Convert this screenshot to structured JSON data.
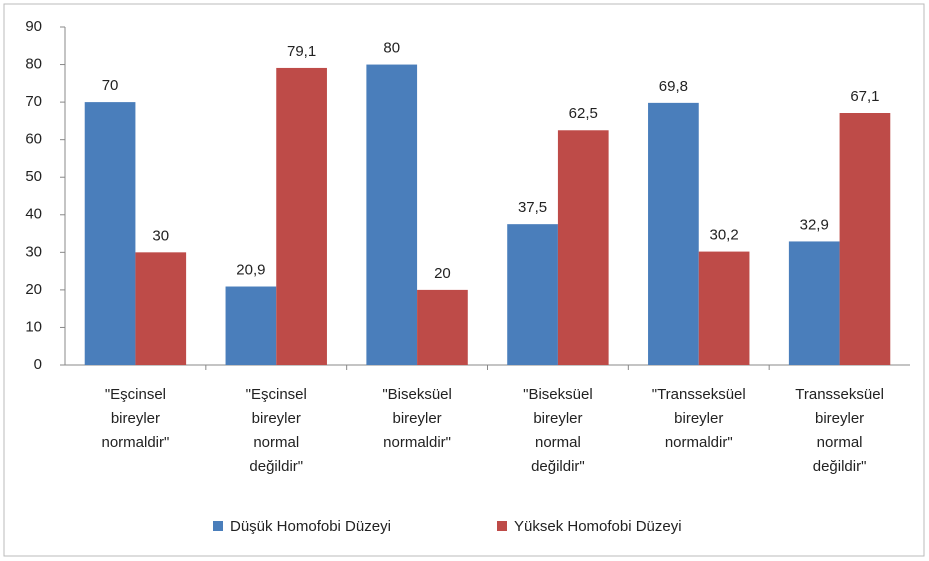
{
  "chart_data": {
    "type": "bar",
    "categories": [
      [
        "\"Eşcinsel",
        "bireyler",
        "normaldir\""
      ],
      [
        "\"Eşcinsel",
        "bireyler",
        "normal",
        "değildir\""
      ],
      [
        "\"Biseksüel",
        "bireyler",
        "normaldir\""
      ],
      [
        "\"Biseksüel",
        "bireyler",
        "normal",
        "değildir\""
      ],
      [
        "\"Transseksüel",
        "bireyler",
        "normaldir\""
      ],
      [
        "Transseksüel",
        "bireyler",
        "normal",
        "değildir\""
      ]
    ],
    "series": [
      {
        "name": "Düşük Homofobi Düzeyi",
        "color": "#4a7ebb",
        "values": [
          70,
          20.9,
          80,
          37.5,
          69.8,
          32.9
        ],
        "value_labels": [
          "70",
          "20,9",
          "80",
          "37,5",
          "69,8",
          "32,9"
        ]
      },
      {
        "name": "Yüksek Homofobi Düzeyi",
        "color": "#be4b48",
        "values": [
          30,
          79.1,
          20,
          62.5,
          30.2,
          67.1
        ],
        "value_labels": [
          "30",
          "79,1",
          "20",
          "62,5",
          "30,2",
          "67,1"
        ]
      }
    ],
    "ylim": [
      0,
      90
    ],
    "yticks": [
      0,
      10,
      20,
      30,
      40,
      50,
      60,
      70,
      80,
      90
    ],
    "grid": false,
    "legend": "bottom"
  }
}
